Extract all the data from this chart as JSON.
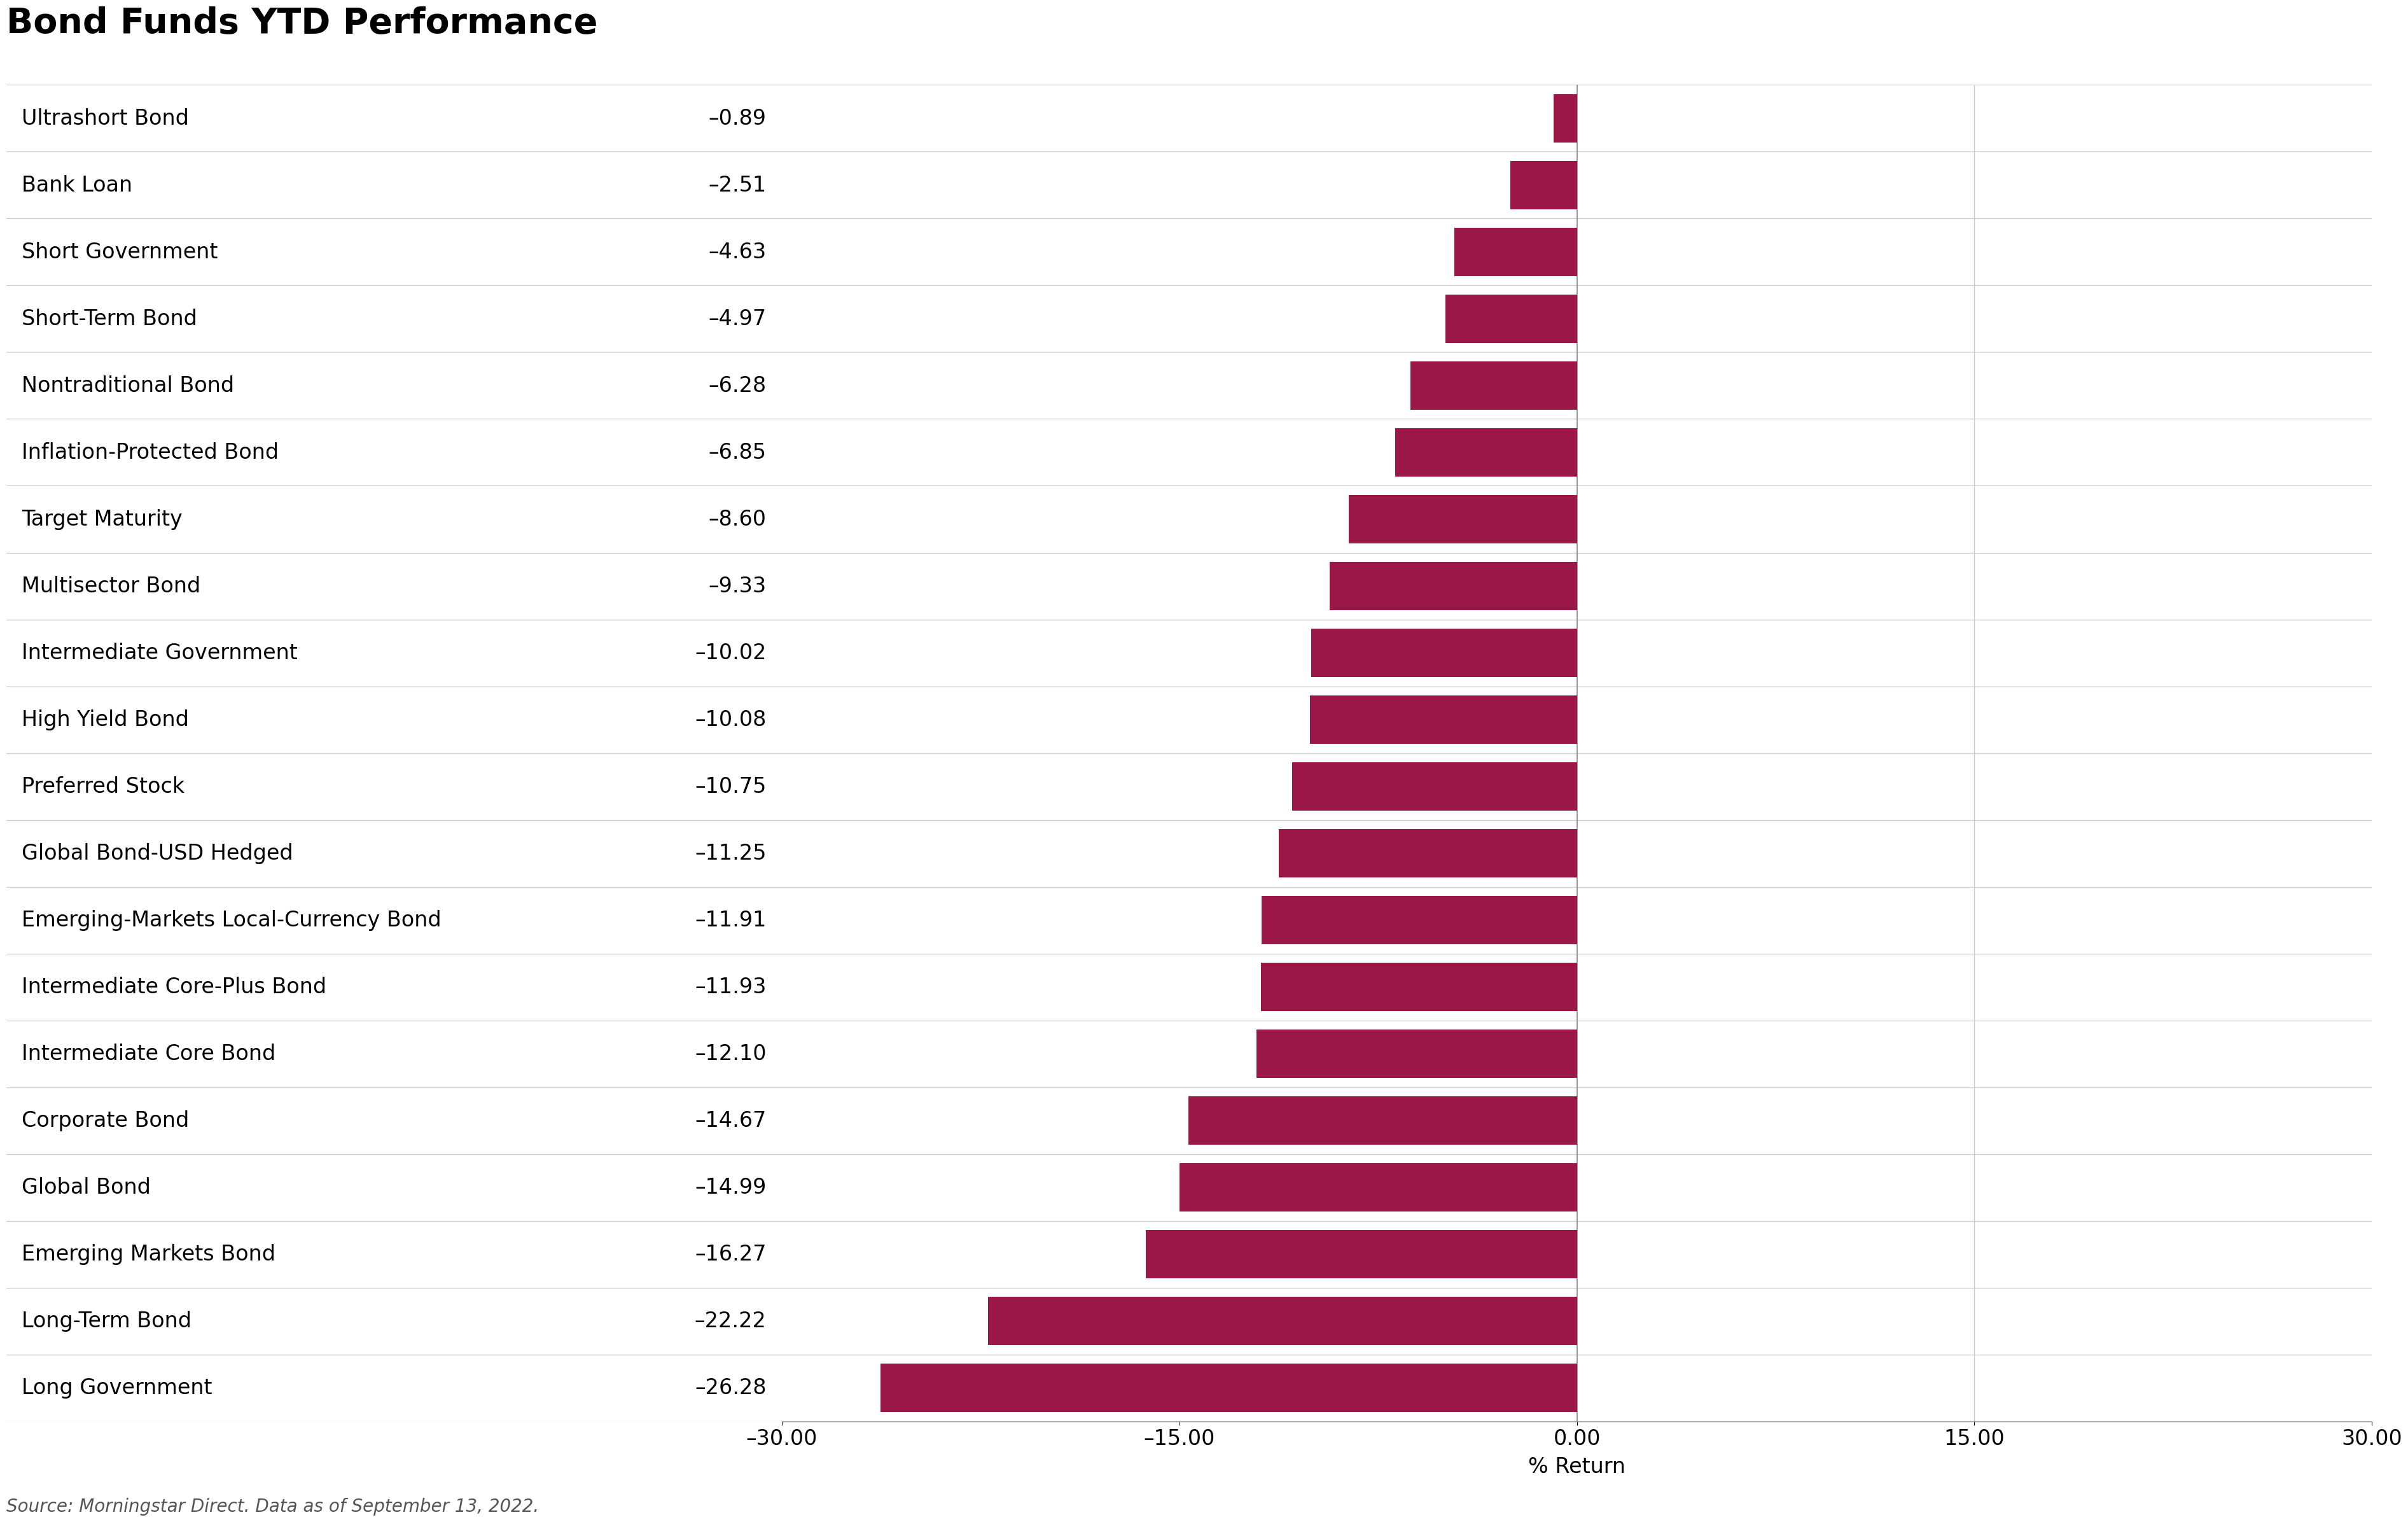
{
  "title": "Bond Funds YTD Performance",
  "categories": [
    "Long Government",
    "Long-Term Bond",
    "Emerging Markets Bond",
    "Global Bond",
    "Corporate Bond",
    "Intermediate Core Bond",
    "Intermediate Core-Plus Bond",
    "Emerging-Markets Local-Currency Bond",
    "Global Bond-USD Hedged",
    "Preferred Stock",
    "High Yield Bond",
    "Intermediate Government",
    "Multisector Bond",
    "Target Maturity",
    "Inflation-Protected Bond",
    "Nontraditional Bond",
    "Short-Term Bond",
    "Short Government",
    "Bank Loan",
    "Ultrashort Bond"
  ],
  "values": [
    -26.28,
    -22.22,
    -16.27,
    -14.99,
    -14.67,
    -12.1,
    -11.93,
    -11.91,
    -11.25,
    -10.75,
    -10.08,
    -10.02,
    -9.33,
    -8.6,
    -6.85,
    -6.28,
    -4.97,
    -4.63,
    -2.51,
    -0.89
  ],
  "value_labels": [
    "–26.28",
    "–22.22",
    "–16.27",
    "–14.99",
    "–14.67",
    "–12.10",
    "–11.93",
    "–11.91",
    "–11.25",
    "–10.75",
    "–10.08",
    "–10.02",
    "–9.33",
    "–8.60",
    "–6.85",
    "–6.28",
    "–4.97",
    "–4.63",
    "–2.51",
    "–0.89"
  ],
  "bar_color": "#9b1748",
  "background_color": "#ffffff",
  "xlabel": "% Return",
  "xlim_left": -30,
  "xlim_right": 30,
  "xticks": [
    -30.0,
    -15.0,
    0.0,
    15.0,
    30.0
  ],
  "xtick_labels": [
    "–30.00",
    "–15.00",
    "0.00",
    "15.00",
    "30.00"
  ],
  "caption": "Source: Morningstar Direct. Data as of September 13, 2022.",
  "title_fontsize": 40,
  "cat_fontsize": 24,
  "val_fontsize": 24,
  "tick_fontsize": 24,
  "xlabel_fontsize": 24,
  "caption_fontsize": 20,
  "bar_height": 0.72
}
